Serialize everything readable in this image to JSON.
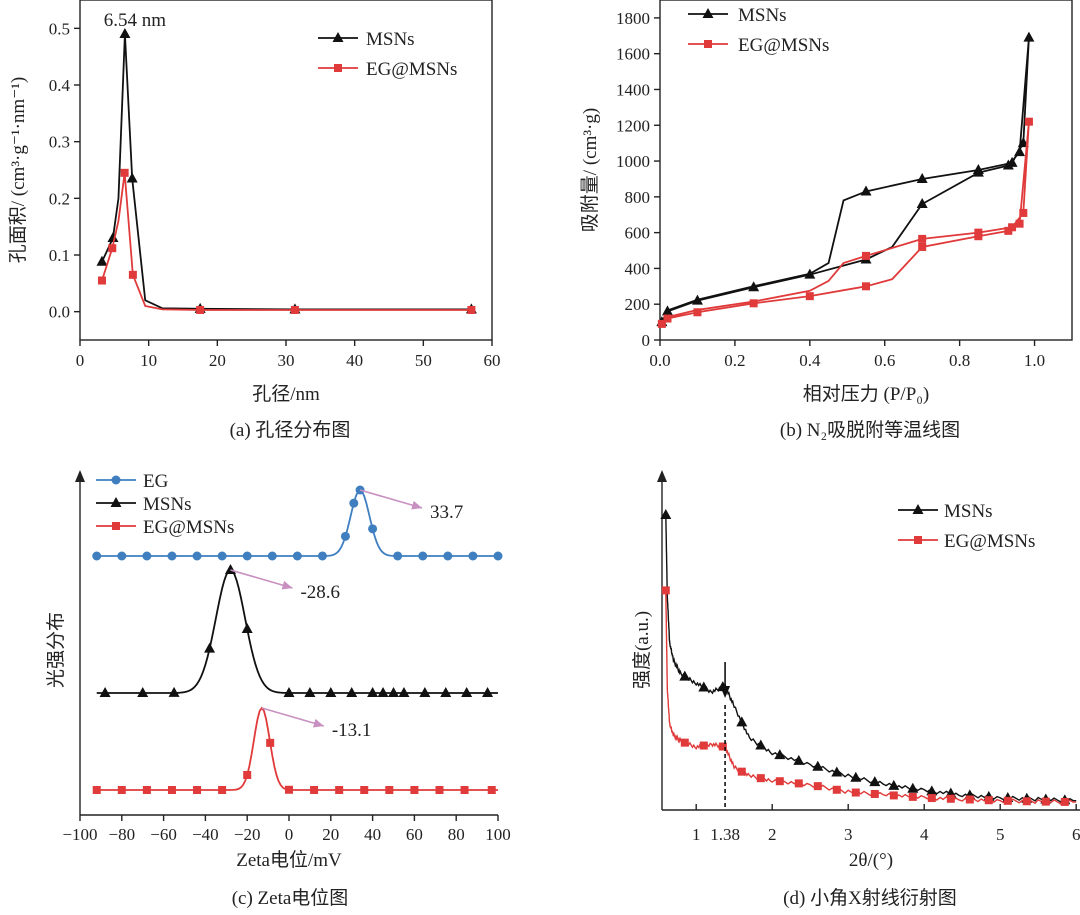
{
  "colors": {
    "black": "#111111",
    "red": "#e03a3a",
    "blue": "#3f7fc0",
    "arrow": "#c890c0"
  },
  "chart_data": [
    {
      "id": "a",
      "type": "line",
      "caption": "(a) 孔径分布图",
      "title": "",
      "xlabel": "孔径/nm",
      "ylabel": "孔面积/ (cm³·g⁻¹·nm⁻¹)",
      "xlim": [
        0,
        60
      ],
      "ylim": [
        -0.05,
        0.55
      ],
      "xticks": [
        0,
        10,
        20,
        30,
        40,
        50,
        60
      ],
      "yticks": [
        0.0,
        0.1,
        0.2,
        0.3,
        0.4,
        0.5
      ],
      "xtick_labels": [
        "0",
        "10",
        "20",
        "30",
        "40",
        "50",
        "60"
      ],
      "ytick_labels": [
        "0.0",
        "0.1",
        "0.2",
        "0.3",
        "0.4",
        "0.5"
      ],
      "annotations": [
        {
          "text": "6.54 nm",
          "x": 6.54,
          "y": 0.49
        }
      ],
      "series": [
        {
          "name": "MSNs",
          "color": "#111111",
          "marker": "triangle",
          "x": [
            3.2,
            4.8,
            5.6,
            6.54,
            7.6,
            9.5,
            12,
            17.5,
            31.3,
            57
          ],
          "y": [
            0.088,
            0.13,
            0.2,
            0.49,
            0.235,
            0.02,
            0.006,
            0.005,
            0.004,
            0.004
          ],
          "markers": [
            0,
            1,
            3,
            4,
            7,
            8,
            9
          ]
        },
        {
          "name": "EG@MSNs",
          "color": "#e03a3a",
          "marker": "square",
          "x": [
            3.2,
            4.7,
            5.6,
            6.5,
            7.7,
            9.5,
            12,
            17.5,
            31.3,
            57
          ],
          "y": [
            0.055,
            0.112,
            0.16,
            0.245,
            0.065,
            0.01,
            0.004,
            0.003,
            0.003,
            0.003
          ],
          "markers": [
            0,
            1,
            3,
            4,
            7,
            8,
            9
          ]
        }
      ]
    },
    {
      "id": "b",
      "type": "line",
      "caption": "(b) N₂吸脱附等温线图",
      "title": "",
      "xlabel": "相对压力 (P/P₀)",
      "ylabel": "吸附量/ (cm³·g)",
      "xlim": [
        0,
        1.1
      ],
      "ylim": [
        0,
        1900
      ],
      "xticks": [
        0,
        0.2,
        0.4,
        0.6,
        0.8,
        1.0
      ],
      "yticks": [
        0,
        200,
        400,
        600,
        800,
        1000,
        1200,
        1400,
        1600,
        1800
      ],
      "xtick_labels": [
        "0.0",
        "0.2",
        "0.4",
        "0.6",
        "0.8",
        "1.0"
      ],
      "ytick_labels": [
        "0",
        "200",
        "400",
        "600",
        "800",
        "1000",
        "1200",
        "1400",
        "1600",
        "1800"
      ],
      "series": [
        {
          "name": "MSNs",
          "color": "#111111",
          "marker": "triangle",
          "x": [
            0.005,
            0.02,
            0.1,
            0.25,
            0.4,
            0.55,
            0.62,
            0.7,
            0.85,
            0.93,
            0.96,
            0.985,
            0.97,
            0.94,
            0.85,
            0.7,
            0.55,
            0.49,
            0.45,
            0.4,
            0.25,
            0.1,
            0.02,
            0.005
          ],
          "y": [
            100,
            160,
            220,
            295,
            365,
            450,
            520,
            760,
            935,
            975,
            1050,
            1690,
            1100,
            990,
            950,
            900,
            830,
            780,
            430,
            370,
            300,
            225,
            165,
            100
          ],
          "markers": [
            0,
            1,
            2,
            3,
            4,
            5,
            7,
            8,
            9,
            10,
            11,
            12,
            13,
            14,
            15,
            16
          ]
        },
        {
          "name": "EG@MSNs",
          "color": "#e03a3a",
          "marker": "square",
          "x": [
            0.005,
            0.02,
            0.1,
            0.25,
            0.4,
            0.55,
            0.62,
            0.7,
            0.85,
            0.93,
            0.96,
            0.985,
            0.97,
            0.94,
            0.85,
            0.7,
            0.55,
            0.49,
            0.45,
            0.4,
            0.25,
            0.1,
            0.02,
            0.005
          ],
          "y": [
            90,
            120,
            155,
            205,
            245,
            300,
            340,
            520,
            580,
            610,
            650,
            1220,
            710,
            630,
            600,
            565,
            470,
            430,
            330,
            275,
            215,
            168,
            128,
            90
          ],
          "markers": [
            0,
            1,
            2,
            3,
            4,
            5,
            7,
            8,
            9,
            10,
            11,
            12,
            13,
            14,
            15,
            16
          ]
        }
      ]
    },
    {
      "id": "c",
      "type": "line",
      "caption": "(c) Zeta电位图",
      "title": "",
      "xlabel": "Zeta电位/mV",
      "ylabel": "光强分布",
      "xlim": [
        -100,
        100
      ],
      "xticks": [
        -100,
        -80,
        -60,
        -40,
        -20,
        0,
        20,
        40,
        60,
        80,
        100
      ],
      "xtick_labels": [
        "−100",
        "−80",
        "−60",
        "−40",
        "−20",
        "0",
        "20",
        "40",
        "60",
        "80",
        "100"
      ],
      "annotations": [
        {
          "text": "33.7",
          "series": "EG",
          "peak_x": 33.7
        },
        {
          "text": "-28.6",
          "series": "MSNs",
          "peak_x": -28.6
        },
        {
          "text": "-13.1",
          "series": "EG@MSNs",
          "peak_x": -13.1
        }
      ],
      "series": [
        {
          "name": "EG",
          "color": "#3f7fc0",
          "marker": "circle",
          "center": 34,
          "width": 4.5,
          "offset": 2.0,
          "marker_x": [
            -92,
            -80,
            -68,
            -56,
            -44,
            -32,
            -20,
            -8,
            4,
            16,
            27,
            31,
            34,
            40,
            52,
            64,
            76,
            88,
            100
          ]
        },
        {
          "name": "MSNs",
          "color": "#111111",
          "marker": "triangle",
          "center": -28,
          "width": 7,
          "offset": 1.0,
          "marker_x": [
            -88,
            -70,
            -55,
            -38,
            -28,
            -20,
            0,
            10,
            20,
            30,
            40,
            45,
            50,
            55,
            65,
            75,
            85,
            95
          ]
        },
        {
          "name": "EG@MSNs",
          "color": "#e03a3a",
          "marker": "square",
          "center": -13,
          "width": 3.8,
          "offset": 0.0,
          "marker_x": [
            -92,
            -80,
            -68,
            -56,
            -44,
            -32,
            -20,
            -9,
            0,
            12,
            24,
            36,
            48,
            60,
            72,
            84,
            97
          ]
        }
      ]
    },
    {
      "id": "d",
      "type": "line",
      "caption": "(d) 小角X射线衍射图",
      "title": "",
      "xlabel": "2θ/(°)",
      "ylabel": "强度(a.u.)",
      "xlim": [
        0.55,
        6.05
      ],
      "xticks": [
        1,
        2,
        3,
        4,
        5,
        6
      ],
      "xtick_labels": [
        "1",
        "2",
        "3",
        "4",
        "5",
        "6"
      ],
      "annotations": [
        {
          "text": "1.38",
          "x": 1.38
        }
      ],
      "series": [
        {
          "name": "MSNs",
          "color": "#111111",
          "marker": "triangle",
          "x": [
            0.6,
            0.62,
            0.65,
            0.7,
            0.8,
            1.0,
            1.2,
            1.38,
            1.5,
            1.7,
            2.0,
            2.5,
            3.0,
            3.5,
            4.0,
            4.5,
            5.0,
            5.5,
            6.0
          ],
          "y": [
            1.0,
            0.72,
            0.56,
            0.5,
            0.45,
            0.42,
            0.39,
            0.41,
            0.34,
            0.23,
            0.18,
            0.14,
            0.1,
            0.07,
            0.05,
            0.035,
            0.025,
            0.02,
            0.015
          ]
        },
        {
          "name": "EG@MSNs",
          "color": "#e03a3a",
          "marker": "square",
          "x": [
            0.6,
            0.62,
            0.65,
            0.7,
            0.8,
            1.0,
            1.2,
            1.38,
            1.5,
            1.7,
            2.0,
            2.5,
            3.0,
            3.5,
            4.0,
            4.5,
            5.0,
            5.5,
            6.0
          ],
          "y": [
            0.74,
            0.4,
            0.28,
            0.24,
            0.22,
            0.2,
            0.21,
            0.2,
            0.13,
            0.1,
            0.085,
            0.07,
            0.045,
            0.035,
            0.025,
            0.02,
            0.015,
            0.012,
            0.01
          ]
        }
      ]
    }
  ]
}
